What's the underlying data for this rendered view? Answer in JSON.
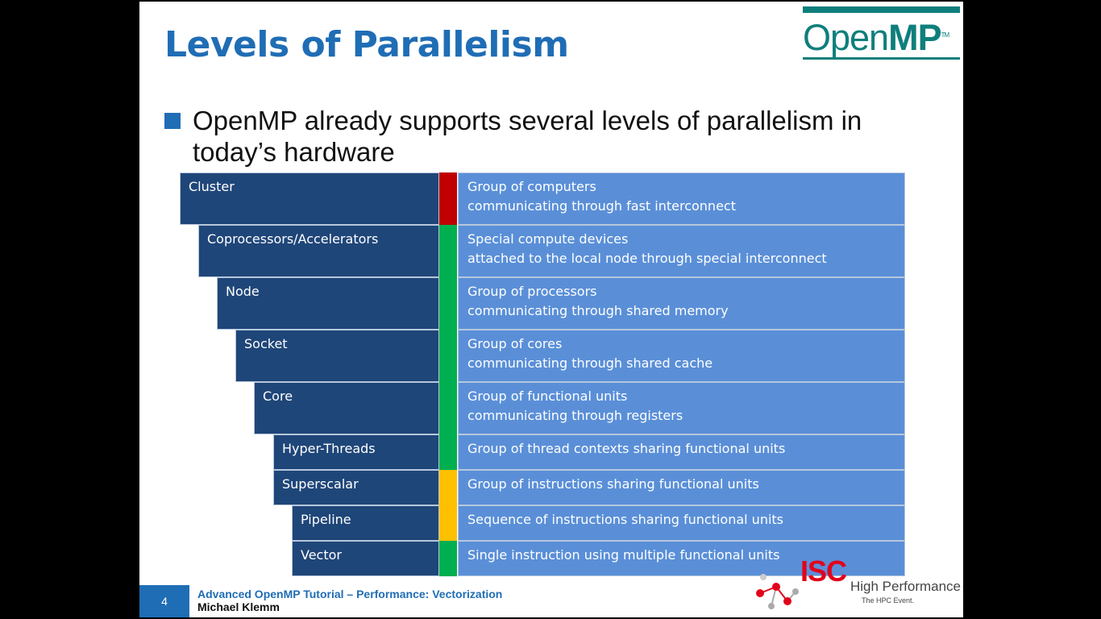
{
  "slide": {
    "title": "Levels of Parallelism",
    "logo": {
      "part1": "Open",
      "part2": "MP",
      "tm": "TM"
    },
    "bullet": "OpenMP already supports several levels of parallelism in today’s hardware",
    "levels": [
      {
        "name": "Cluster",
        "line1": "Group of computers",
        "line2": "communicating through fast interconnect",
        "indicator": "#c00000"
      },
      {
        "name": "Coprocessors/Accelerators",
        "line1": "Special compute devices",
        "line2": "attached to the local node through special interconnect",
        "indicator": "#00b050"
      },
      {
        "name": "Node",
        "line1": "Group of processors",
        "line2": "communicating through shared memory",
        "indicator": "#00b050"
      },
      {
        "name": "Socket",
        "line1": "Group of cores",
        "line2": "communicating through shared cache",
        "indicator": "#00b050"
      },
      {
        "name": "Core",
        "line1": "Group of functional units",
        "line2": "communicating through registers",
        "indicator": "#00b050"
      },
      {
        "name": "Hyper-Threads",
        "line1": "Group of thread contexts sharing functional units",
        "line2": "",
        "indicator": "#00b050"
      },
      {
        "name": "Superscalar",
        "line1": "Group of instructions sharing functional units",
        "line2": "",
        "indicator": "#ffc000"
      },
      {
        "name": "Pipeline",
        "line1": "Sequence of instructions sharing functional units",
        "line2": "",
        "indicator": "#ffc000"
      },
      {
        "name": "Vector",
        "line1": "Single instruction using multiple functional units",
        "line2": "",
        "indicator": "#00b050"
      }
    ],
    "footer": {
      "page_number": "4",
      "line1": "Advanced OpenMP Tutorial – Performance: Vectorization",
      "line2": "Michael Klemm"
    },
    "isc_logo": {
      "brand": "ISC",
      "line1": "High Performance",
      "line2": "The HPC Event."
    }
  },
  "colors": {
    "accent": "#1f6db5",
    "level_dark": "#1f4679",
    "level_light": "#5a8fd8",
    "openmp_teal": "#0e7f7c"
  }
}
